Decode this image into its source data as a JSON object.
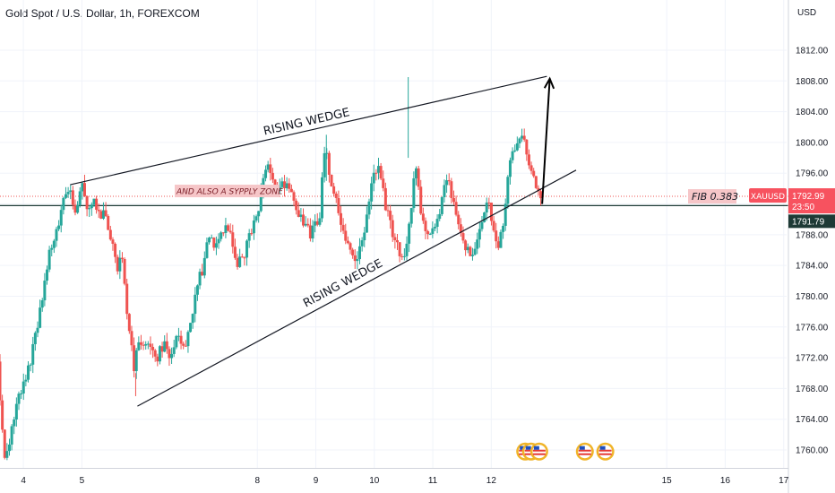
{
  "header": {
    "symbol_title": "Gold Spot / U.S. Dollar, 1h, FOREXCOM",
    "currency": "USD"
  },
  "chart_data": {
    "type": "candlestick",
    "title": "Gold Spot / U.S. Dollar, 1h, FOREXCOM",
    "ylabel": "USD",
    "ylim": [
      1758,
      1816
    ],
    "y_ticks": [
      1760,
      1764,
      1768,
      1772,
      1776,
      1780,
      1784,
      1788,
      1792,
      1796,
      1800,
      1804,
      1808,
      1812
    ],
    "y_tick_labels": [
      "1760.00",
      "1764.00",
      "1768.00",
      "1772.00",
      "1776.00",
      "1780.00",
      "1784.00",
      "1788.00",
      "1792.00",
      "1796.00",
      "1800.00",
      "1804.00",
      "1808.00",
      "1812.00"
    ],
    "x_range": [
      3.6,
      17.05
    ],
    "x_ticks": [
      4,
      5,
      8,
      9,
      10,
      11,
      12,
      15,
      16,
      17
    ],
    "x_tick_labels": [
      "4",
      "5",
      "8",
      "9",
      "10",
      "11",
      "12",
      "15",
      "16",
      "17"
    ],
    "grid": true,
    "colors": {
      "up": "#26a69a",
      "down": "#ef5350",
      "line": "#131722",
      "price_up": "#ef5350",
      "price_line": "#1e3a36"
    },
    "price_tags": [
      {
        "symbol": "XAUUSD",
        "price": "1792.99",
        "countdown": "23:50",
        "value": 1792.99,
        "color": "#f7525f"
      },
      {
        "price": "1791.79",
        "value": 1791.79,
        "color": "#1e3a36"
      }
    ],
    "horizontal_line": {
      "value": 1791.79
    },
    "dotted_line": {
      "value": 1792.99
    },
    "path_points": [
      [
        3.6,
        1771.5
      ],
      [
        3.72,
        1758.5
      ],
      [
        3.85,
        1763
      ],
      [
        3.95,
        1767
      ],
      [
        4.08,
        1769
      ],
      [
        4.2,
        1773
      ],
      [
        4.35,
        1779
      ],
      [
        4.5,
        1786
      ],
      [
        4.65,
        1790
      ],
      [
        4.8,
        1794.5
      ],
      [
        4.92,
        1791
      ],
      [
        5.05,
        1795
      ],
      [
        5.15,
        1791
      ],
      [
        5.25,
        1793
      ],
      [
        5.35,
        1790
      ],
      [
        5.45,
        1791
      ],
      [
        5.52,
        1788
      ],
      [
        5.65,
        1784
      ],
      [
        5.72,
        1786
      ],
      [
        5.85,
        1775
      ],
      [
        5.95,
        1770
      ],
      [
        6.0,
        1775
      ],
      [
        6.08,
        1773
      ],
      [
        6.2,
        1774
      ],
      [
        6.32,
        1772
      ],
      [
        6.45,
        1774
      ],
      [
        6.55,
        1772
      ],
      [
        6.7,
        1775
      ],
      [
        6.8,
        1773
      ],
      [
        6.9,
        1776
      ],
      [
        7.0,
        1781
      ],
      [
        7.12,
        1784
      ],
      [
        7.2,
        1788
      ],
      [
        7.3,
        1787
      ],
      [
        7.45,
        1789
      ],
      [
        7.6,
        1788
      ],
      [
        7.7,
        1784
      ],
      [
        7.8,
        1785
      ],
      [
        7.92,
        1788
      ],
      [
        8.05,
        1791
      ],
      [
        8.15,
        1796
      ],
      [
        8.25,
        1797
      ],
      [
        8.35,
        1794
      ],
      [
        8.45,
        1795
      ],
      [
        8.55,
        1794
      ],
      [
        8.65,
        1793
      ],
      [
        8.75,
        1791
      ],
      [
        8.85,
        1789
      ],
      [
        8.95,
        1788
      ],
      [
        9.1,
        1790
      ],
      [
        9.2,
        1800
      ],
      [
        9.28,
        1796
      ],
      [
        9.4,
        1792
      ],
      [
        9.5,
        1789
      ],
      [
        9.6,
        1786
      ],
      [
        9.72,
        1784.5
      ],
      [
        9.85,
        1787
      ],
      [
        9.98,
        1794
      ],
      [
        10.1,
        1797
      ],
      [
        10.2,
        1793
      ],
      [
        10.32,
        1789
      ],
      [
        10.45,
        1786
      ],
      [
        10.55,
        1785
      ],
      [
        10.65,
        1790
      ],
      [
        10.75,
        1797
      ],
      [
        10.82,
        1792
      ],
      [
        10.92,
        1788
      ],
      [
        11.05,
        1788.5
      ],
      [
        11.15,
        1791
      ],
      [
        11.28,
        1795
      ],
      [
        11.38,
        1793
      ],
      [
        11.5,
        1789
      ],
      [
        11.62,
        1786
      ],
      [
        11.72,
        1786
      ],
      [
        11.82,
        1788
      ],
      [
        11.92,
        1791
      ],
      [
        12.0,
        1792.5
      ],
      [
        12.08,
        1788
      ],
      [
        12.15,
        1786
      ],
      [
        12.25,
        1789
      ],
      [
        12.35,
        1797
      ],
      [
        12.45,
        1799
      ],
      [
        12.55,
        1801.5
      ],
      [
        12.62,
        1800
      ],
      [
        12.7,
        1797
      ],
      [
        12.8,
        1795
      ],
      [
        12.88,
        1792
      ]
    ],
    "annotations": {
      "supply_zone_label": "AND ALSO A SYPPLY ZONE",
      "fib_label": "FIB 0.383",
      "upper_wedge_label": "RISING WEDGE",
      "lower_wedge_label": "RISING WEDGE"
    },
    "drawn_lines": [
      {
        "name": "upper-trendline",
        "from": [
          4.8,
          1794.5
        ],
        "to": [
          12.95,
          1808.6
        ]
      },
      {
        "name": "lower-trendline",
        "from": [
          5.95,
          1765.7
        ],
        "to": [
          13.45,
          1796.4
        ]
      }
    ],
    "arrow": {
      "from": [
        12.87,
        1792
      ],
      "to": [
        13.0,
        1808.3
      ]
    },
    "event_icons": [
      {
        "x": 12.58,
        "value": 1759.8
      },
      {
        "x": 12.68,
        "value": 1759.8
      },
      {
        "x": 12.82,
        "value": 1759.8
      },
      {
        "x": 13.6,
        "value": 1759.8
      },
      {
        "x": 13.95,
        "value": 1759.8
      }
    ]
  }
}
